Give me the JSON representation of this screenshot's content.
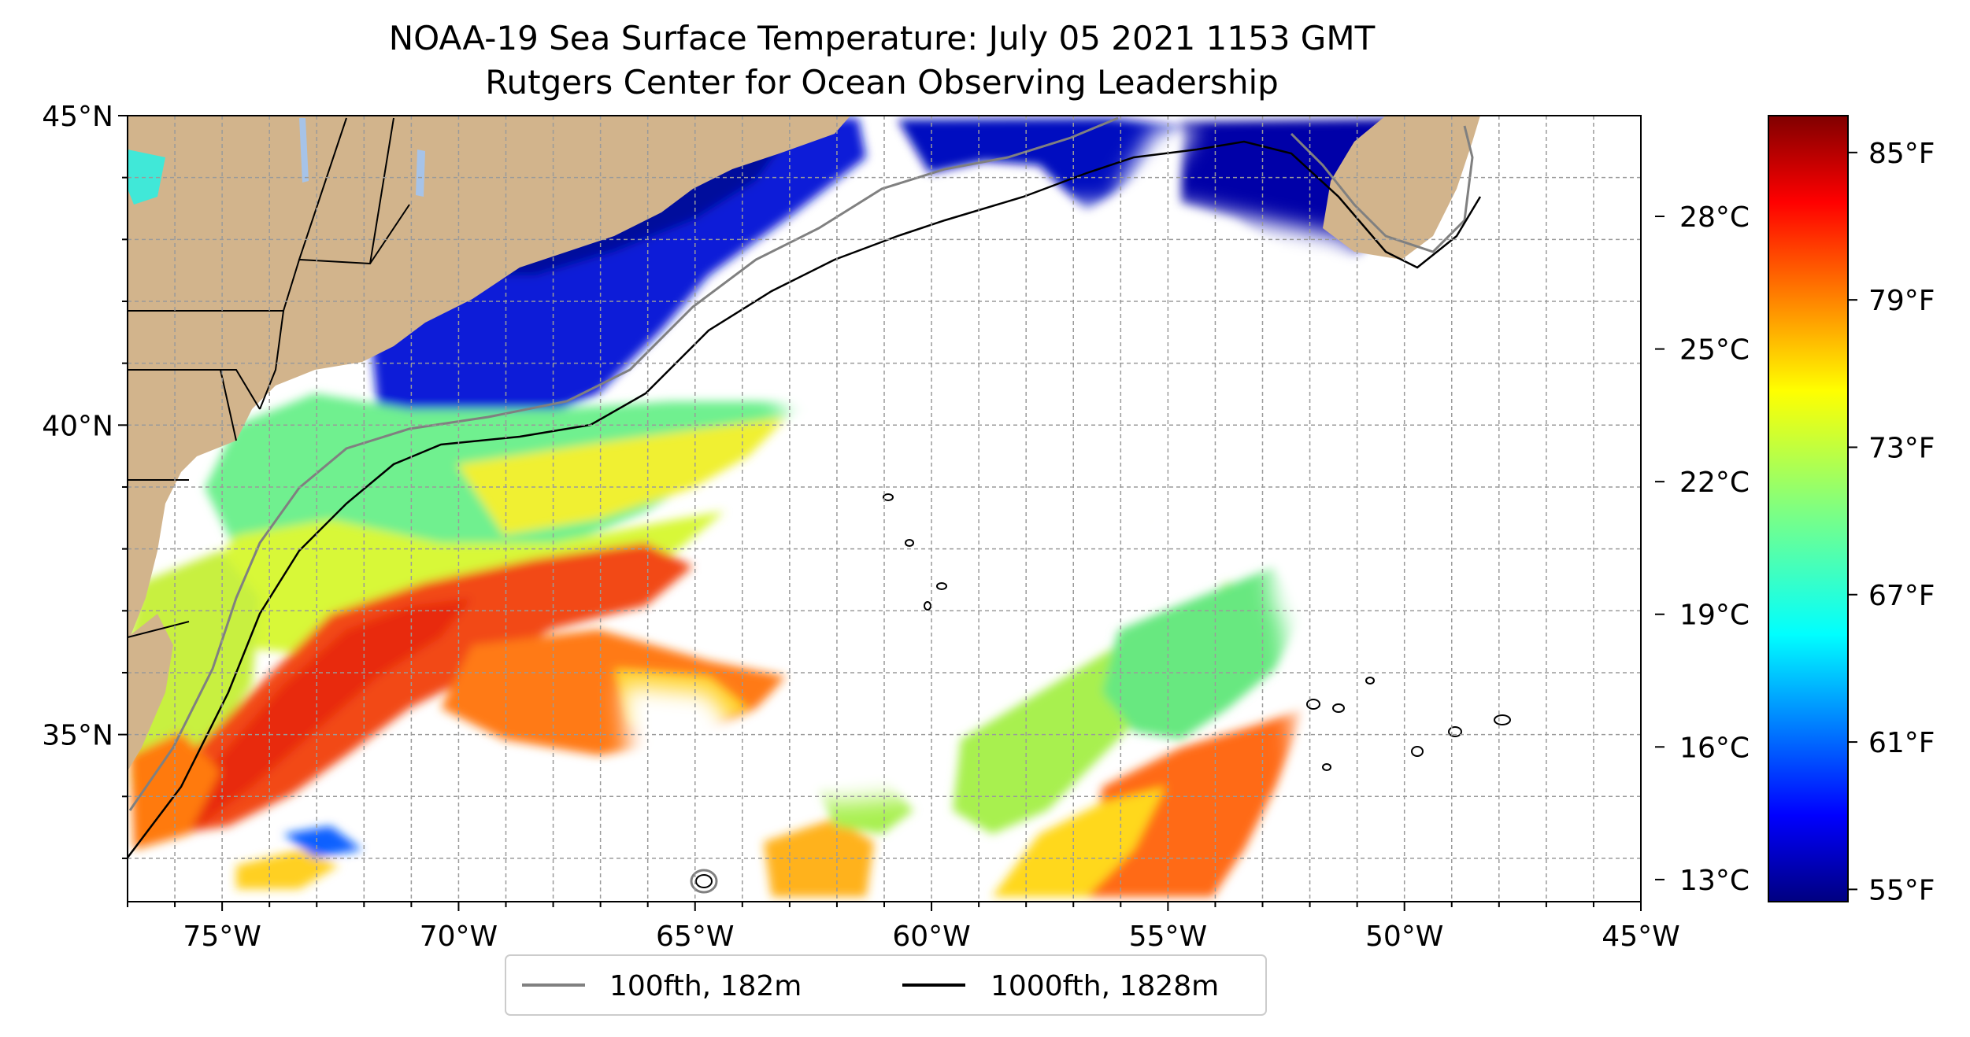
{
  "title_line1": "NOAA-19 Sea Surface Temperature: July 05 2021 1153 GMT",
  "title_line2": "Rutgers Center for Ocean Observing Leadership",
  "map": {
    "lon_range": [
      -77,
      -45
    ],
    "lat_range": [
      32.3,
      45
    ],
    "lon_ticks": [
      {
        "value": -75,
        "label": "75°W"
      },
      {
        "value": -70,
        "label": "70°W"
      },
      {
        "value": -65,
        "label": "65°W"
      },
      {
        "value": -60,
        "label": "60°W"
      },
      {
        "value": -55,
        "label": "55°W"
      },
      {
        "value": -50,
        "label": "50°W"
      },
      {
        "value": -45,
        "label": "45°W"
      }
    ],
    "lat_ticks": [
      {
        "value": 45,
        "label": "45°N"
      },
      {
        "value": 40,
        "label": "40°N"
      },
      {
        "value": 35,
        "label": "35°N"
      }
    ],
    "grid": "dashed, every 1°",
    "land_color": "#d2b48c",
    "lake_color": "#a6c3e8"
  },
  "legend": {
    "placement": "below map",
    "entries": [
      {
        "label": "100fth, 182m",
        "color": "#808080"
      },
      {
        "label": "1000fth, 1828m",
        "color": "#000000"
      }
    ]
  },
  "colorbar": {
    "colormap": "jet",
    "range_f": [
      54.5,
      86.5
    ],
    "celsius_ticks": [
      {
        "value": 13,
        "label": "13°C"
      },
      {
        "value": 16,
        "label": "16°C"
      },
      {
        "value": 19,
        "label": "19°C"
      },
      {
        "value": 22,
        "label": "22°C"
      },
      {
        "value": 25,
        "label": "25°C"
      },
      {
        "value": 28,
        "label": "28°C"
      }
    ],
    "fahrenheit_ticks": [
      {
        "value": 55,
        "label": "55°F"
      },
      {
        "value": 61,
        "label": "61°F"
      },
      {
        "value": 67,
        "label": "67°F"
      },
      {
        "value": 73,
        "label": "73°F"
      },
      {
        "value": 79,
        "label": "79°F"
      },
      {
        "value": 85,
        "label": "85°F"
      }
    ]
  }
}
